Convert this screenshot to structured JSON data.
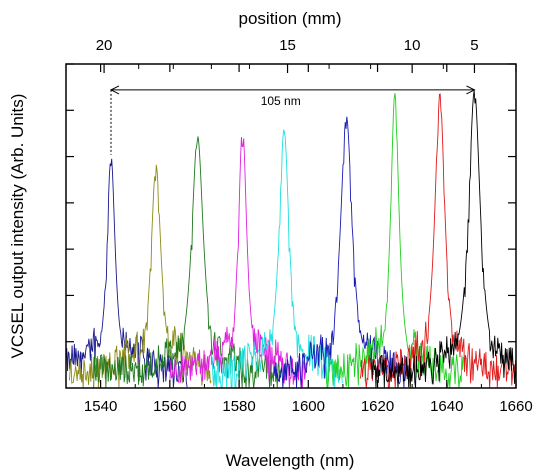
{
  "chart_data": {
    "type": "line",
    "xlabel": "Wavelength (nm)",
    "ylabel": "VCSEL output intensity (Arb. Units)",
    "x2label": "position  (mm)",
    "xlim": [
      1530,
      1660
    ],
    "x_ticks": [
      1540,
      1560,
      1580,
      1600,
      1620,
      1640,
      1660
    ],
    "ylim": [
      0,
      1
    ],
    "y_ticks_labeled": false,
    "grid": false,
    "legend": "none",
    "top_axis": {
      "ticks": [
        {
          "label": "20",
          "wavelength": 1541
        },
        {
          "label": "15",
          "wavelength": 1594
        },
        {
          "label": "10",
          "wavelength": 1630
        },
        {
          "label": "5",
          "wavelength": 1648
        }
      ]
    },
    "annotation": {
      "text": "105 nm",
      "x_start": 1543,
      "x_end": 1648,
      "y": 0.92
    },
    "series": [
      {
        "peak": 1543,
        "height": 0.72,
        "color": "#1a1a8c",
        "noise_from": 1530,
        "noise_to": 1565
      },
      {
        "peak": 1556,
        "height": 0.69,
        "color": "#8c8c1a",
        "noise_from": 1531,
        "noise_to": 1572
      },
      {
        "peak": 1568,
        "height": 0.78,
        "color": "#1f7a1f",
        "noise_from": 1538,
        "noise_to": 1592
      },
      {
        "peak": 1581,
        "height": 0.81,
        "color": "#e020e0",
        "noise_from": 1560,
        "noise_to": 1600
      },
      {
        "peak": 1593,
        "height": 0.8,
        "color": "#20e0e0",
        "noise_from": 1572,
        "noise_to": 1610
      },
      {
        "peak": 1611,
        "height": 0.84,
        "color": "#1a1ab4",
        "noise_from": 1590,
        "noise_to": 1628
      },
      {
        "peak": 1625,
        "height": 0.91,
        "color": "#20d020",
        "noise_from": 1605,
        "noise_to": 1645
      },
      {
        "peak": 1638,
        "height": 0.91,
        "color": "#e01a1a",
        "noise_from": 1615,
        "noise_to": 1660
      },
      {
        "peak": 1648,
        "height": 0.92,
        "color": "#000000",
        "noise_from": 1618,
        "noise_to": 1660
      }
    ]
  }
}
